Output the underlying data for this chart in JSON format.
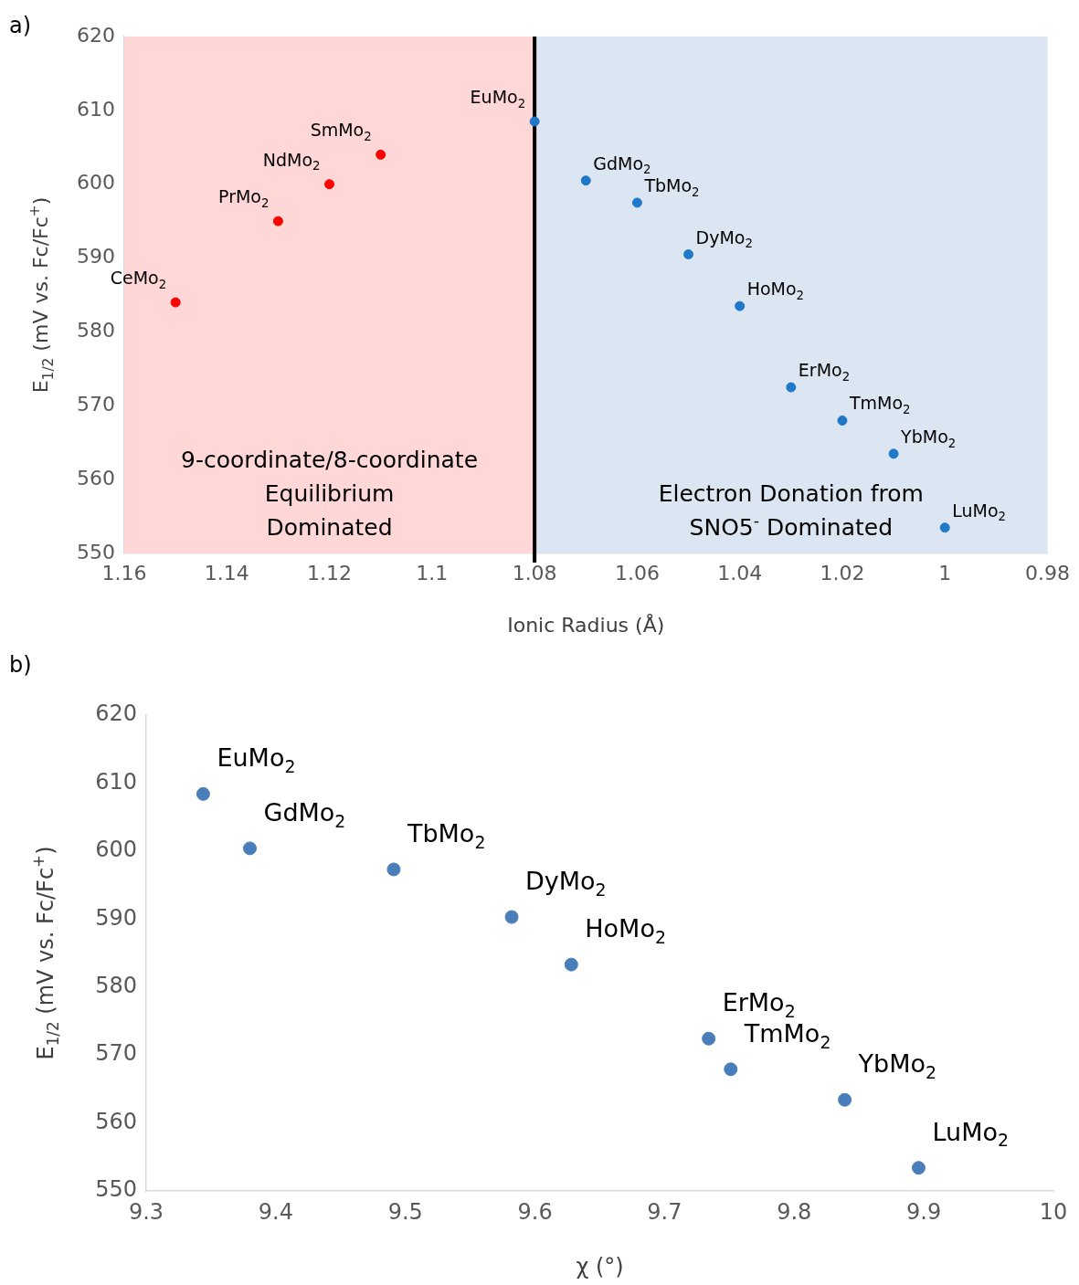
{
  "chart_data": [
    {
      "type": "scatter",
      "title": "a)",
      "xlabel": "Ionic Radius (Å)",
      "ylabel": "E$_{1/2}$ (mV vs. Fc/Fc$^{+}$)",
      "xlim": [
        1.16,
        0.98
      ],
      "xticks": [
        1.16,
        1.14,
        1.12,
        1.1,
        1.08,
        1.06,
        1.04,
        1.02,
        1,
        0.98
      ],
      "ylim": [
        550,
        620
      ],
      "yticks": [
        550,
        560,
        570,
        580,
        590,
        600,
        610,
        620
      ],
      "grid": false,
      "legend": false,
      "marker": "circle",
      "series": [
        {
          "color": "#ff0000",
          "x": [
            1.15,
            1.13,
            1.12,
            1.11
          ],
          "values": [
            584,
            595,
            600,
            604
          ]
        },
        {
          "color": "#1f78c8",
          "x": [
            1.08,
            1.07,
            1.06,
            1.05,
            1.04,
            1.03,
            1.02,
            1.01,
            1
          ],
          "values": [
            608.5,
            600.5,
            597.5,
            590.5,
            583.5,
            572.5,
            568,
            563.5,
            553.5
          ]
        }
      ],
      "bands": [
        {
          "axis": "x",
          "from": 1.16,
          "to": 1.08,
          "label": "9-coordinate/8-coordinate Equilibrium Dominated",
          "color": "#ffd7d7"
        },
        {
          "axis": "x",
          "from": 1.08,
          "to": 0.98,
          "label": "Electron Donation from SNO5$^{-}$ Dominated",
          "color": "#dce6f2"
        }
      ],
      "ref_lines": [
        {
          "axis": "x",
          "value": 1.08,
          "color": "#000000"
        }
      ],
      "annotations": [
        {
          "text": "CeMo$_{2}$",
          "x": 1.15,
          "y": 584
        },
        {
          "text": "PrMo$_{2}$",
          "x": 1.13,
          "y": 595
        },
        {
          "text": "NdMo$_{2}$",
          "x": 1.12,
          "y": 600
        },
        {
          "text": "SmMo$_{2}$",
          "x": 1.11,
          "y": 604
        },
        {
          "text": "EuMo$_{2}$",
          "x": 1.08,
          "y": 608.5
        },
        {
          "text": "GdMo$_{2}$",
          "x": 1.07,
          "y": 600.5
        },
        {
          "text": "TbMo$_{2}$",
          "x": 1.06,
          "y": 597.5
        },
        {
          "text": "DyMo$_{2}$",
          "x": 1.05,
          "y": 590.5
        },
        {
          "text": "HoMo$_{2}$",
          "x": 1.04,
          "y": 583.5
        },
        {
          "text": "ErMo$_{2}$",
          "x": 1.03,
          "y": 572.5
        },
        {
          "text": "TmMo$_{2}$",
          "x": 1.02,
          "y": 568
        },
        {
          "text": "YbMo$_{2}$",
          "x": 1.01,
          "y": 563.5
        },
        {
          "text": "LuMo$_{2}$",
          "x": 1,
          "y": 553.5
        }
      ]
    },
    {
      "type": "scatter",
      "title": "b)",
      "xlabel": "χ (°)",
      "ylabel": "E$_{1/2}$ (mV vs. Fc/Fc$^{+}$)",
      "xlim": [
        9.3,
        10
      ],
      "xticks": [
        9.3,
        9.4,
        9.5,
        9.6,
        9.7,
        9.8,
        9.9,
        10
      ],
      "ylim": [
        550,
        620
      ],
      "yticks": [
        550,
        560,
        570,
        580,
        590,
        600,
        610,
        620
      ],
      "grid": false,
      "legend": false,
      "marker": "circle",
      "series": [
        {
          "color": "#4a7ebb",
          "x": [
            9.344,
            9.38,
            9.491,
            9.582,
            9.628,
            9.734,
            9.751,
            9.839,
            9.896
          ],
          "values": [
            608.4,
            600.4,
            597.3,
            590.3,
            583.3,
            572.4,
            567.9,
            563.4,
            553.4
          ]
        }
      ],
      "annotations": [
        {
          "text": "EuMo$_{2}$",
          "x": 9.344,
          "y": 608.4
        },
        {
          "text": "GdMo$_{2}$",
          "x": 9.38,
          "y": 600.4
        },
        {
          "text": "TbMo$_{2}$",
          "x": 9.491,
          "y": 597.3
        },
        {
          "text": "DyMo$_{2}$",
          "x": 9.582,
          "y": 590.3
        },
        {
          "text": "HoMo$_{2}$",
          "x": 9.628,
          "y": 583.3
        },
        {
          "text": "ErMo$_{2}$",
          "x": 9.734,
          "y": 572.4
        },
        {
          "text": "TmMo$_{2}$",
          "x": 9.751,
          "y": 567.9
        },
        {
          "text": "YbMo$_{2}$",
          "x": 9.839,
          "y": 563.4
        },
        {
          "text": "LuMo$_{2}$",
          "x": 9.896,
          "y": 553.4
        }
      ]
    }
  ]
}
